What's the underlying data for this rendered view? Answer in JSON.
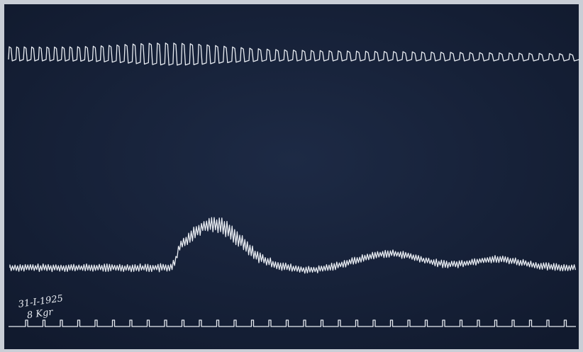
{
  "annotations": {
    "date": "31-I-1925",
    "load": "8 Kgr"
  }
}
